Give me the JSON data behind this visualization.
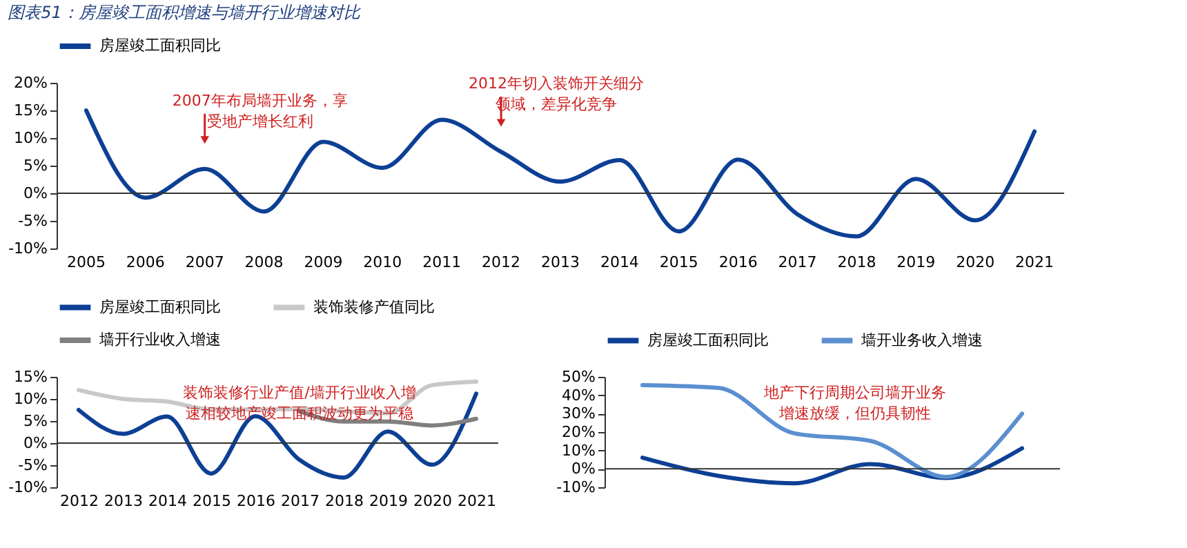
{
  "chart_data": [
    {
      "type": "line",
      "title": "图表51：房屋竣工面积增速与墙开行业增速对比",
      "categories": [
        "2005",
        "2006",
        "2007",
        "2008",
        "2009",
        "2010",
        "2011",
        "2012",
        "2013",
        "2014",
        "2015",
        "2016",
        "2017",
        "2018",
        "2019",
        "2020",
        "2021"
      ],
      "series": [
        {
          "name": "房屋竣工面积同比",
          "color": "#0d3f95",
          "values": [
            15.0,
            -0.8,
            4.4,
            -3.3,
            9.3,
            4.6,
            13.3,
            7.5,
            2.1,
            6.0,
            -6.9,
            6.1,
            -3.8,
            -7.8,
            2.6,
            -4.9,
            11.2
          ]
        }
      ],
      "ylim": [
        -10,
        20
      ],
      "yticks": [
        {
          "value": -10,
          "label": "-10%"
        },
        {
          "value": -5,
          "label": "-5%"
        },
        {
          "value": 0,
          "label": "0%"
        },
        {
          "value": 5,
          "label": "5%"
        },
        {
          "value": 10,
          "label": "10%"
        },
        {
          "value": 15,
          "label": "15%"
        },
        {
          "value": 20,
          "label": "20%"
        }
      ],
      "annotations": [
        {
          "text": "2007年布局墙开业务，享受地产增长红利",
          "x": "2007",
          "y": 4.4
        },
        {
          "text": "2012年切入装饰开关细分领域，差异化竞争",
          "x": "2012",
          "y": 7.5
        }
      ],
      "ref_lines": [
        {
          "axis": "y",
          "value": 0,
          "color": "#333333"
        }
      ],
      "legend": "top",
      "grid": false
    },
    {
      "type": "line",
      "categories": [
        "2012",
        "2013",
        "2014",
        "2015",
        "2016",
        "2017",
        "2018",
        "2019",
        "2020",
        "2021"
      ],
      "series": [
        {
          "name": "房屋竣工面积同比",
          "color": "#0d3f95",
          "values": [
            7.5,
            2.1,
            6.0,
            -6.9,
            6.1,
            -3.8,
            -7.8,
            2.6,
            -4.9,
            11.2
          ]
        },
        {
          "name": "装饰装修产值同比",
          "color": "#c8c8c8",
          "values": [
            12.0,
            10.0,
            9.4,
            7.6,
            7.6,
            7.7,
            7.2,
            6.8,
            13.1,
            13.9
          ]
        },
        {
          "name": "墙开行业收入增速",
          "color": "#7f7f7f",
          "values": [
            null,
            null,
            null,
            null,
            null,
            7.2,
            4.9,
            4.9,
            4.0,
            5.5
          ]
        }
      ],
      "ylim": [
        -10,
        15
      ],
      "yticks": [
        {
          "value": -10,
          "label": "-10%"
        },
        {
          "value": -5,
          "label": "-5%"
        },
        {
          "value": 0,
          "label": "0%"
        },
        {
          "value": 5,
          "label": "5%"
        },
        {
          "value": 10,
          "label": "10%"
        },
        {
          "value": 15,
          "label": "15%"
        }
      ],
      "annotations": [
        "装饰装修行业产值/墙开行业收入增速相较地产竣工面积波动更为平稳"
      ],
      "ref_lines": [
        {
          "axis": "y",
          "value": 0,
          "color": "#333333"
        }
      ],
      "legend": "top",
      "grid": false
    },
    {
      "type": "line",
      "categories": [
        null,
        null,
        null,
        null,
        null,
        null
      ],
      "series": [
        {
          "name": "房屋竣工面积同比",
          "color": "#0d3f95",
          "values": [
            6.1,
            -3.8,
            -7.8,
            2.6,
            -4.9,
            11.2
          ]
        },
        {
          "name": "墙开业务收入增速",
          "color": "#5b8fd0",
          "values": [
            45.5,
            44.0,
            19.3,
            15.2,
            -4.4,
            30.0
          ]
        }
      ],
      "ylim": [
        -10,
        50
      ],
      "yticks": [
        {
          "value": -10,
          "label": "-10%"
        },
        {
          "value": 0,
          "label": "0%"
        },
        {
          "value": 10,
          "label": "10%"
        },
        {
          "value": 20,
          "label": "20%"
        },
        {
          "value": 30,
          "label": "30%"
        },
        {
          "value": 40,
          "label": "40%"
        },
        {
          "value": 50,
          "label": "50%"
        }
      ],
      "annotations": [
        "地产下行周期公司墙开业务增速放缓，但仍具韧性"
      ],
      "ref_lines": [
        {
          "axis": "y",
          "value": 0,
          "color": "#333333"
        }
      ],
      "legend": "top",
      "tick_labels": "y",
      "grid": false
    }
  ]
}
